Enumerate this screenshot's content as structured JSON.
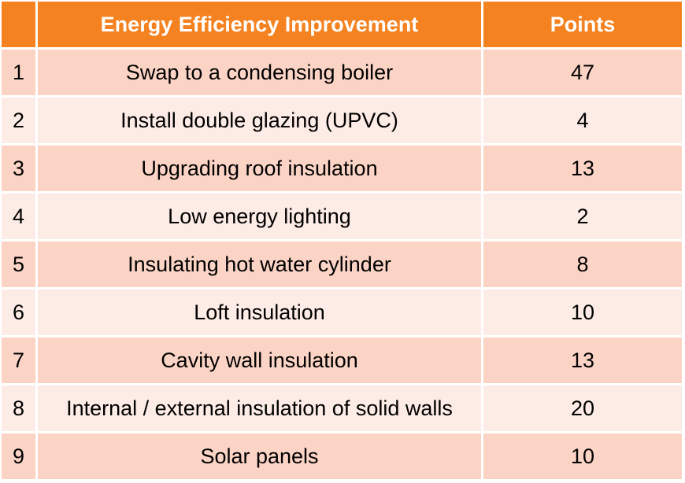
{
  "table": {
    "headers": {
      "number": "",
      "improvement": "Energy Efficiency Improvement",
      "points": "Points"
    },
    "rows": [
      {
        "number": "1",
        "improvement": "Swap to a condensing boiler",
        "points": "47"
      },
      {
        "number": "2",
        "improvement": "Install double glazing (UPVC)",
        "points": "4"
      },
      {
        "number": "3",
        "improvement": "Upgrading roof insulation",
        "points": "13"
      },
      {
        "number": "4",
        "improvement": "Low energy lighting",
        "points": "2"
      },
      {
        "number": "5",
        "improvement": "Insulating hot water cylinder",
        "points": "8"
      },
      {
        "number": "6",
        "improvement": "Loft insulation",
        "points": "10"
      },
      {
        "number": "7",
        "improvement": "Cavity wall insulation",
        "points": "13"
      },
      {
        "number": "8",
        "improvement": "Internal / external insulation of solid walls",
        "points": "20"
      },
      {
        "number": "9",
        "improvement": "Solar panels",
        "points": "10"
      }
    ],
    "colors": {
      "header": "#f58220",
      "row_dark": "#fcd4c6",
      "row_light": "#fdebe5"
    }
  }
}
